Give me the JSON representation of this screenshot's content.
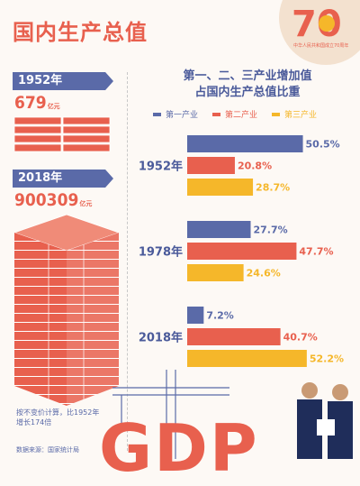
{
  "header": {
    "title": "国内生产总值"
  },
  "logo": {
    "number": "70",
    "caption": "中华人民共和国成立70周年"
  },
  "left": {
    "y1952": {
      "year": "1952年",
      "value": "679",
      "unit": "亿元"
    },
    "y2018": {
      "year": "2018年",
      "value": "900309",
      "unit": "亿元"
    },
    "note": "按不变价计算，比1952年增长174倍",
    "source": "数据来源：国家统计局"
  },
  "chart_data": {
    "type": "bar",
    "title": "第一、二、三产业增加值占国内生产总值比重",
    "categories": [
      "1952年",
      "1978年",
      "2018年"
    ],
    "series": [
      {
        "name": "第一产业",
        "color": "#5a6aa8",
        "values": [
          50.5,
          27.7,
          7.2
        ]
      },
      {
        "name": "第二产业",
        "color": "#e8604e",
        "values": [
          20.8,
          47.7,
          40.7
        ]
      },
      {
        "name": "第三产业",
        "color": "#f5b72a",
        "values": [
          28.7,
          24.6,
          52.2
        ]
      }
    ],
    "unit": "%",
    "orientation": "horizontal",
    "legend": "top"
  },
  "footer": {
    "gdp_text": "GDP"
  }
}
